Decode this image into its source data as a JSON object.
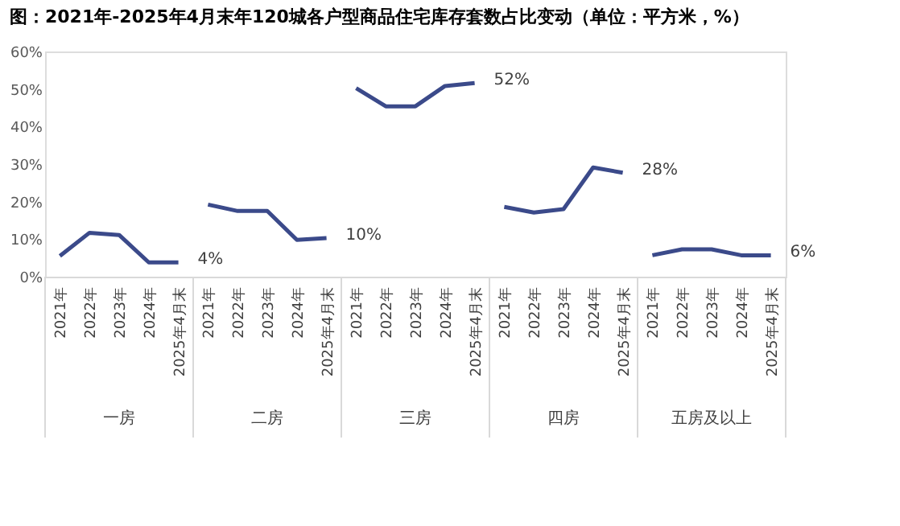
{
  "chart_data": {
    "type": "line",
    "title": "图：2021年-2025年4月末年120城各户型商品住宅库存套数占比变动（单位：平方米，%）",
    "categories": [
      "2021年",
      "2022年",
      "2023年",
      "2024年",
      "2025年4月末",
      "2021年",
      "2022年",
      "2023年",
      "2024年",
      "2025年4月末",
      "2021年",
      "2022年",
      "2023年",
      "2024年",
      "2025年4月末",
      "2021年",
      "2022年",
      "2023年",
      "2024年",
      "2025年4月末",
      "2021年",
      "2022年",
      "2023年",
      "2024年",
      "2025年4月末"
    ],
    "series": [
      {
        "color": "#3b4a8a",
        "values": [
          5.5,
          11.7,
          11.1,
          3.8,
          3.8,
          null,
          null,
          null,
          null,
          null,
          null,
          null,
          null,
          null,
          null,
          null,
          null,
          null,
          null,
          null,
          null,
          null,
          null,
          null,
          null
        ],
        "value_labels": [
          null,
          null,
          null,
          null,
          "4%",
          null,
          null,
          null,
          null,
          null,
          null,
          null,
          null,
          null,
          null,
          null,
          null,
          null,
          null,
          null,
          null,
          null,
          null,
          null,
          null
        ]
      },
      {
        "color": "#3b4a8a",
        "values": [
          null,
          null,
          null,
          null,
          null,
          19.2,
          17.5,
          17.5,
          9.8,
          10.3,
          null,
          null,
          null,
          null,
          null,
          null,
          null,
          null,
          null,
          null,
          null,
          null,
          null,
          null,
          null
        ],
        "value_labels": [
          null,
          null,
          null,
          null,
          null,
          null,
          null,
          null,
          null,
          "10%",
          null,
          null,
          null,
          null,
          null,
          null,
          null,
          null,
          null,
          null,
          null,
          null,
          null,
          null,
          null
        ]
      },
      {
        "color": "#3b4a8a",
        "values": [
          null,
          null,
          null,
          null,
          null,
          null,
          null,
          null,
          null,
          null,
          50.2,
          45.4,
          45.4,
          50.8,
          51.6,
          null,
          null,
          null,
          null,
          null,
          null,
          null,
          null,
          null,
          null
        ],
        "value_labels": [
          null,
          null,
          null,
          null,
          null,
          null,
          null,
          null,
          null,
          null,
          null,
          null,
          null,
          null,
          "52%",
          null,
          null,
          null,
          null,
          null,
          null,
          null,
          null,
          null,
          null
        ]
      },
      {
        "color": "#3b4a8a",
        "values": [
          null,
          null,
          null,
          null,
          null,
          null,
          null,
          null,
          null,
          null,
          null,
          null,
          null,
          null,
          null,
          18.6,
          17.1,
          18.0,
          29.1,
          27.7,
          null,
          null,
          null,
          null,
          null
        ],
        "value_labels": [
          null,
          null,
          null,
          null,
          null,
          null,
          null,
          null,
          null,
          null,
          null,
          null,
          null,
          null,
          null,
          null,
          null,
          null,
          null,
          "28%",
          null,
          null,
          null,
          null,
          null
        ]
      },
      {
        "color": "#3b4a8a",
        "values": [
          null,
          null,
          null,
          null,
          null,
          null,
          null,
          null,
          null,
          null,
          null,
          null,
          null,
          null,
          null,
          null,
          null,
          null,
          null,
          null,
          5.7,
          7.3,
          7.3,
          5.7,
          5.7
        ],
        "value_labels": [
          null,
          null,
          null,
          null,
          null,
          null,
          null,
          null,
          null,
          null,
          null,
          null,
          null,
          null,
          null,
          null,
          null,
          null,
          null,
          null,
          null,
          null,
          null,
          null,
          "6%"
        ]
      }
    ],
    "ylim": [
      0,
      60
    ],
    "yticks": [
      {
        "value": 0,
        "label": "0%"
      },
      {
        "value": 10,
        "label": "10%"
      },
      {
        "value": 20,
        "label": "20%"
      },
      {
        "value": 30,
        "label": "30%"
      },
      {
        "value": 40,
        "label": "40%"
      },
      {
        "value": 50,
        "label": "50%"
      },
      {
        "value": 60,
        "label": "60%"
      }
    ],
    "annotations": [
      "一房",
      "二房",
      "三房",
      "四房",
      "五房及以上"
    ],
    "grid": false,
    "legend": false,
    "marker": "none",
    "line_style": "solid"
  }
}
